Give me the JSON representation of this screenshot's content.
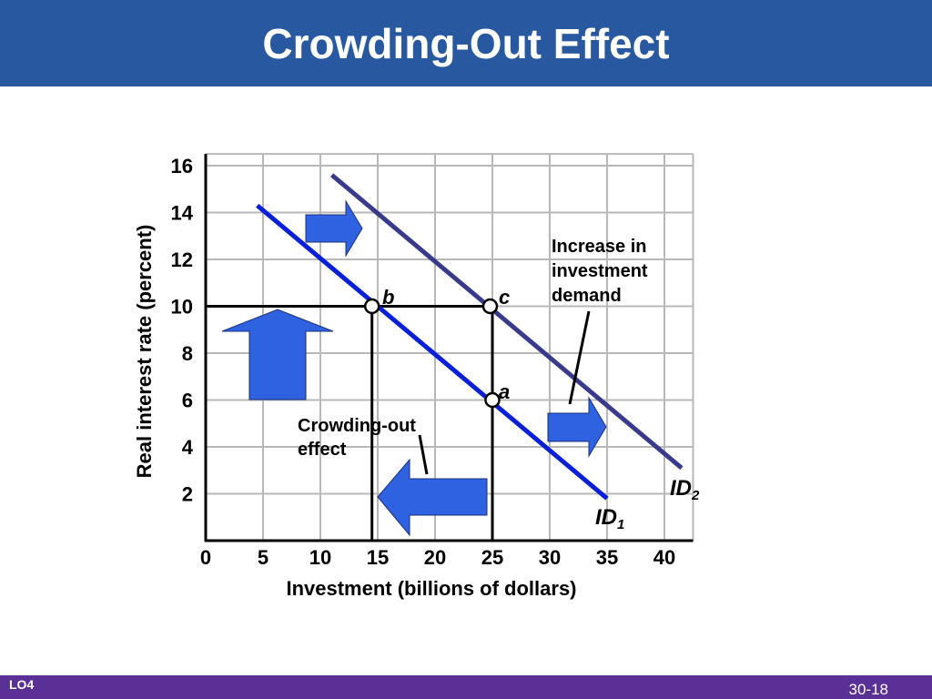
{
  "header": {
    "title": "Crowding-Out Effect"
  },
  "footer": {
    "lo_label": "LO4",
    "page_number": "30-18"
  },
  "colors": {
    "title_bar": "#2858a0",
    "footer_bar": "#5a2f96",
    "id1": "#0a1fd8",
    "id2": "#3a3a8c",
    "arrow": "#2f62e0"
  },
  "chart_data": {
    "type": "line",
    "xlabel": "Investment (billions of dollars)",
    "ylabel": "Real interest rate (percent)",
    "xlim": [
      0,
      42.5
    ],
    "ylim": [
      0,
      16.5
    ],
    "x_ticks": [
      0,
      5,
      10,
      15,
      20,
      25,
      30,
      35,
      40
    ],
    "y_ticks": [
      2,
      4,
      6,
      8,
      10,
      12,
      14,
      16
    ],
    "grid": true,
    "series": [
      {
        "name": "ID1",
        "label_main": "ID",
        "label_sub": "1",
        "points": [
          [
            4.5,
            14.3
          ],
          [
            35,
            1.8
          ]
        ]
      },
      {
        "name": "ID2",
        "label_main": "ID",
        "label_sub": "2",
        "points": [
          [
            11,
            15.6
          ],
          [
            41.5,
            3.1
          ]
        ]
      }
    ],
    "points": [
      {
        "label": "a",
        "x": 25,
        "y": 6
      },
      {
        "label": "b",
        "x": 14.5,
        "y": 10
      },
      {
        "label": "c",
        "x": 24.8,
        "y": 10
      }
    ],
    "annotations": {
      "increase_lines": [
        "Increase  in",
        "investment",
        "demand"
      ],
      "crowding_lines": [
        "Crowding-out",
        "effect"
      ]
    }
  }
}
